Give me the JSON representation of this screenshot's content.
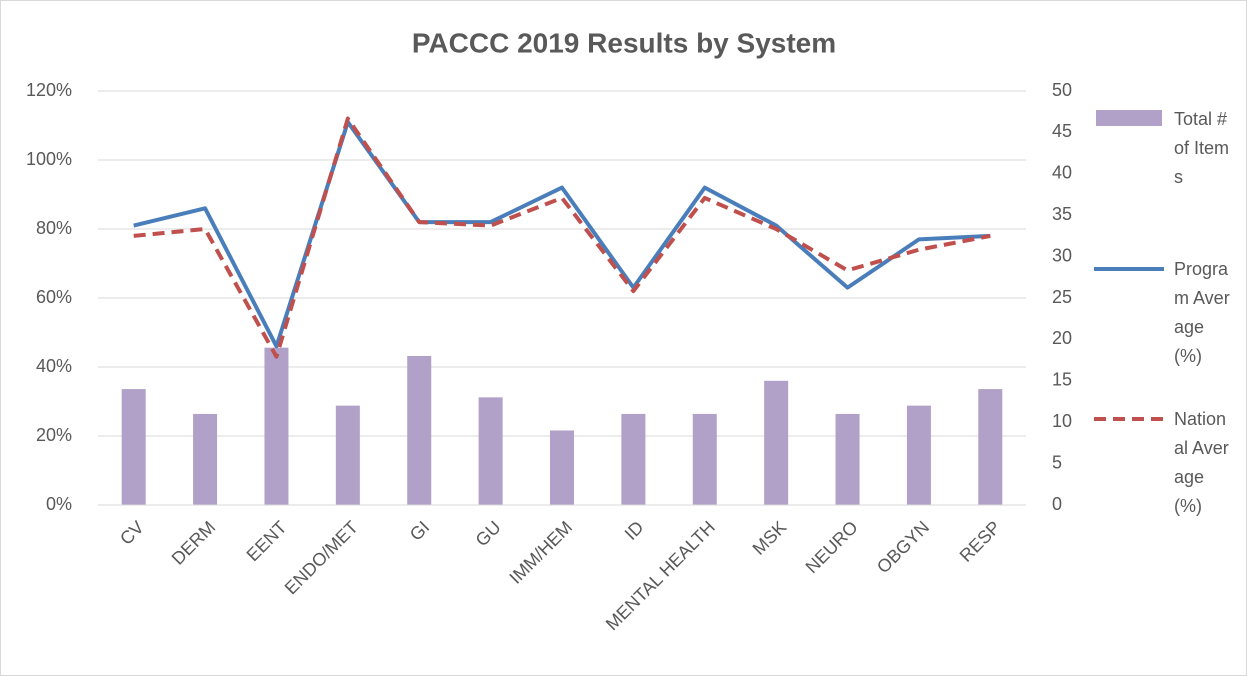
{
  "chart_data": {
    "type": "combo",
    "title": "PACCC 2019 Results by System",
    "categories": [
      "CV",
      "DERM",
      "EENT",
      "ENDO/MET",
      "GI",
      "GU",
      "IMM/HEM",
      "ID",
      "MENTAL HEALTH",
      "MSK",
      "NEURO",
      "OBGYN",
      "RESP"
    ],
    "series": [
      {
        "name": "Total # of Items",
        "type": "bar",
        "axis": "y2",
        "color": "#b1a0c7",
        "values": [
          14,
          11,
          19,
          12,
          18,
          13,
          9,
          11,
          11,
          15,
          11,
          12,
          14
        ]
      },
      {
        "name": "Program Average (%)",
        "type": "line",
        "color": "#4a7ebb",
        "dashed": false,
        "values": [
          81,
          86,
          46,
          111,
          82,
          82,
          92,
          63,
          92,
          81,
          63,
          77,
          78
        ]
      },
      {
        "name": "National Average (%)",
        "type": "line",
        "color": "#c0504d",
        "dashed": true,
        "values": [
          78,
          80,
          43,
          112,
          82,
          81,
          89,
          62,
          89,
          80,
          68,
          74,
          78
        ]
      }
    ],
    "ylim": [
      0,
      120
    ],
    "yticks": [
      {
        "value": 0,
        "label": "0%"
      },
      {
        "value": 20,
        "label": "20%"
      },
      {
        "value": 40,
        "label": "40%"
      },
      {
        "value": 60,
        "label": "60%"
      },
      {
        "value": 80,
        "label": "80%"
      },
      {
        "value": 100,
        "label": "100%"
      },
      {
        "value": 120,
        "label": "120%"
      }
    ],
    "y2lim": [
      0,
      50
    ],
    "y2ticks": [
      0,
      5,
      10,
      15,
      20,
      25,
      30,
      35,
      40,
      45,
      50
    ],
    "grid": true,
    "legend": "right"
  }
}
